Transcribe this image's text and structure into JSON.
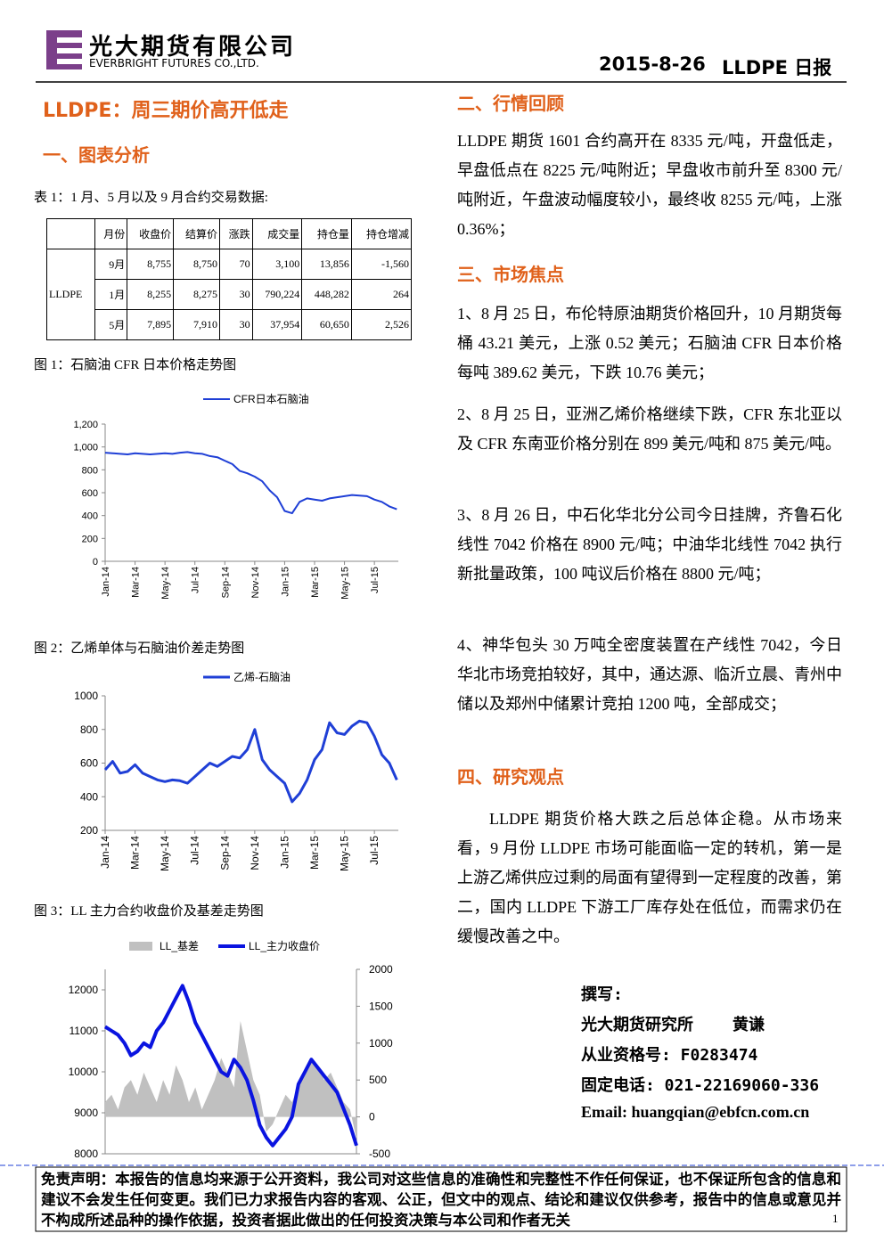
{
  "header": {
    "company_cn": "光大期货有限公司",
    "company_en": "EVERBRIGHT FUTURES CO.,LTD.",
    "date": "2015-8-26",
    "report": "LLDPE 日报"
  },
  "left": {
    "title": "LLDPE：周三期价高开低走",
    "section": "一、图表分析",
    "table_caption": "表 1：1 月、5 月以及 9 月合约交易数据:",
    "fig1_caption": "图 1：石脑油 CFR 日本价格走势图",
    "fig2_caption": "图 2：乙烯单体与石脑油价差走势图",
    "fig3_caption": "图 3：LL 主力合约收盘价及基差走势图"
  },
  "table": {
    "header": [
      "月份",
      "收盘价",
      "结算价",
      "涨跌",
      "成交量",
      "持仓量",
      "持仓增减"
    ],
    "group": "LLDPE",
    "rows": [
      [
        "9月",
        "8,755",
        "8,750",
        "70",
        "3,100",
        "13,856",
        "-1,560"
      ],
      [
        "1月",
        "8,255",
        "8,275",
        "30",
        "790,224",
        "448,282",
        "264"
      ],
      [
        "5月",
        "7,895",
        "7,910",
        "30",
        "37,954",
        "60,650",
        "2,526"
      ]
    ]
  },
  "right": {
    "review_title": "二、行情回顾",
    "review": "LLDPE 期货 1601 合约高开在 8335 元/吨，开盘低走，早盘低点在 8225 元/吨附近；早盘收市前升至 8300 元/吨附近，午盘波动幅度较小，最终收 8255 元/吨，上涨 0.36%；",
    "focus_title": "三、市场焦点",
    "focus": [
      "1、8 月 25 日，布伦特原油期货价格回升，10 月期货每桶 43.21 美元，上涨 0.52 美元；石脑油 CFR 日本价格每吨 389.62 美元，下跌 10.76 美元；",
      "2、8 月 25 日，亚洲乙烯价格继续下跌，CFR 东北亚以及 CFR 东南亚价格分别在 899 美元/吨和 875 美元/吨。",
      "3、8 月 26 日，中石化华北分公司今日挂牌，齐鲁石化线性 7042 价格在 8900 元/吨；中油华北线性 7042 执行新批量政策，100 吨议后价格在 8800 元/吨；",
      "4、神华包头 30 万吨全密度装置在产线性 7042，今日华北市场竞拍较好，其中，通达源、临沂立晨、青州中储以及郑州中储累计竞拍 1200 吨，全部成交；"
    ],
    "view_title": "四、研究观点",
    "view": "LLDPE 期货价格大跌之后总体企稳。从市场来看，9 月份 LLDPE 市场可能面临一定的转机，第一是上游乙烯供应过剩的局面有望得到一定程度的改善，第二，国内 LLDPE 下游工厂库存处在低位，而需求仍在缓慢改善之中。"
  },
  "author": {
    "label": "撰写:",
    "org": "光大期货研究所",
    "name": "黄谦",
    "license": "从业资格号: F0283474",
    "phone": "固定电话: 021-22169060-336",
    "email": "Email: huangqian@ebfcn.com.cn"
  },
  "footer": {
    "disclaimer": "免责声明：本报告的信息均来源于公开资料，我公司对这些信息的准确性和完整性不作任何保证，也不保证所包含的信息和建议不会发生任何变更。我们已力求报告内容的客观、公正，但文中的观点、结论和建议仅供参考，报告中的信息或意见并不构成所述品种的操作依据，投资者据此做出的任何投资决策与本公司和作者无关",
    "page": "1"
  },
  "chart_data": [
    {
      "type": "line",
      "xlim": [
        0,
        19.6
      ],
      "ylim": [
        0,
        1200
      ],
      "yticks": [
        0,
        200,
        400,
        600,
        800,
        {
          "value": 1000,
          "label": "1,000"
        },
        {
          "value": 1200,
          "label": "1,200"
        }
      ],
      "xticks": [
        {
          "value": 0,
          "label": "Jan-14"
        },
        {
          "value": 2,
          "label": "Mar-14"
        },
        {
          "value": 4,
          "label": "May-14"
        },
        {
          "value": 6,
          "label": "Jul-14"
        },
        {
          "value": 8,
          "label": "Sep-14"
        },
        {
          "value": 10,
          "label": "Nov-14"
        },
        {
          "value": 12,
          "label": "Jan-15"
        },
        {
          "value": 14,
          "label": "Mar-15"
        },
        {
          "value": 16,
          "label": "May-15"
        },
        {
          "value": 18,
          "label": "Jul-15"
        }
      ],
      "x": [
        0,
        0.5,
        1,
        1.5,
        2,
        2.5,
        3,
        3.5,
        4,
        4.5,
        5,
        5.5,
        6,
        6.5,
        7,
        7.5,
        8,
        8.5,
        9,
        9.5,
        10,
        10.5,
        11,
        11.5,
        12,
        12.5,
        13,
        13.5,
        14,
        14.5,
        15,
        15.5,
        16,
        16.5,
        17,
        17.5,
        18,
        18.5,
        19,
        19.5
      ],
      "series": [
        {
          "name": "CFR日本石脑油",
          "color": "#1f3fd6",
          "values": [
            950,
            945,
            940,
            935,
            945,
            940,
            935,
            940,
            945,
            940,
            950,
            955,
            945,
            940,
            920,
            910,
            880,
            850,
            790,
            770,
            740,
            700,
            620,
            560,
            440,
            420,
            520,
            550,
            540,
            530,
            550,
            560,
            570,
            580,
            575,
            570,
            540,
            520,
            480,
            455
          ]
        }
      ]
    },
    {
      "type": "line",
      "xlim": [
        0,
        19.6
      ],
      "ylim": [
        200,
        1000
      ],
      "yticks": [
        200,
        400,
        600,
        800,
        1000
      ],
      "xticks": [
        {
          "value": 0,
          "label": "Jan-14"
        },
        {
          "value": 2,
          "label": "Mar-14"
        },
        {
          "value": 4,
          "label": "May-14"
        },
        {
          "value": 6,
          "label": "Jul-14"
        },
        {
          "value": 8,
          "label": "Sep-14"
        },
        {
          "value": 10,
          "label": "Nov-14"
        },
        {
          "value": 12,
          "label": "Jan-15"
        },
        {
          "value": 14,
          "label": "Mar-15"
        },
        {
          "value": 16,
          "label": "May-15"
        },
        {
          "value": 18,
          "label": "Jul-15"
        }
      ],
      "x": [
        0,
        0.5,
        1,
        1.5,
        2,
        2.5,
        3,
        3.5,
        4,
        4.5,
        5,
        5.5,
        6,
        6.5,
        7,
        7.5,
        8,
        8.5,
        9,
        9.5,
        10,
        10.5,
        11,
        11.5,
        12,
        12.5,
        13,
        13.5,
        14,
        14.5,
        15,
        15.5,
        16,
        16.5,
        17,
        17.5,
        18,
        18.5,
        19,
        19.5
      ],
      "series": [
        {
          "name": "乙烯-石脑油",
          "color": "#1f3fd6",
          "values": [
            560,
            610,
            540,
            550,
            590,
            540,
            520,
            500,
            490,
            500,
            495,
            480,
            520,
            560,
            600,
            580,
            610,
            640,
            630,
            680,
            800,
            620,
            560,
            520,
            480,
            370,
            420,
            500,
            620,
            680,
            840,
            780,
            770,
            820,
            850,
            840,
            760,
            650,
            600,
            500
          ]
        }
      ]
    },
    {
      "type": "combo",
      "xlim": [
        0,
        39
      ],
      "ylim": [
        8000,
        12500
      ],
      "y2lim": [
        -500,
        2000
      ],
      "yticks": [
        8000,
        9000,
        10000,
        11000,
        12000
      ],
      "y2ticks": [
        -500,
        0,
        500,
        1000,
        1500,
        2000
      ],
      "x": [
        0,
        1,
        2,
        3,
        4,
        5,
        6,
        7,
        8,
        9,
        10,
        11,
        12,
        13,
        14,
        15,
        16,
        17,
        18,
        19,
        20,
        21,
        22,
        23,
        24,
        25,
        26,
        27,
        28,
        29,
        30,
        31,
        32,
        33,
        34,
        35,
        36,
        37,
        38,
        39
      ],
      "series": [
        {
          "name": "LL_基差",
          "type": "area",
          "axis": "y2",
          "color": "#c0c0c0",
          "values": [
            200,
            300,
            100,
            400,
            500,
            300,
            600,
            400,
            200,
            500,
            300,
            700,
            500,
            200,
            400,
            100,
            300,
            500,
            800,
            600,
            400,
            1300,
            900,
            500,
            300,
            -200,
            -100,
            100,
            300,
            200,
            400,
            600,
            800,
            700,
            500,
            600,
            400,
            200,
            100,
            -300
          ]
        },
        {
          "name": "LL_主力收盘价",
          "type": "line",
          "color": "#0a14e0",
          "values": [
            11100,
            11000,
            10900,
            10700,
            10400,
            10500,
            10700,
            10600,
            11000,
            11200,
            11500,
            11800,
            12100,
            11700,
            11200,
            10900,
            10600,
            10300,
            10000,
            9900,
            10300,
            10100,
            9800,
            9300,
            8700,
            8400,
            8200,
            8400,
            8600,
            8900,
            9700,
            10000,
            10300,
            10100,
            9900,
            9700,
            9500,
            9100,
            8700,
            8200
          ]
        }
      ]
    }
  ]
}
